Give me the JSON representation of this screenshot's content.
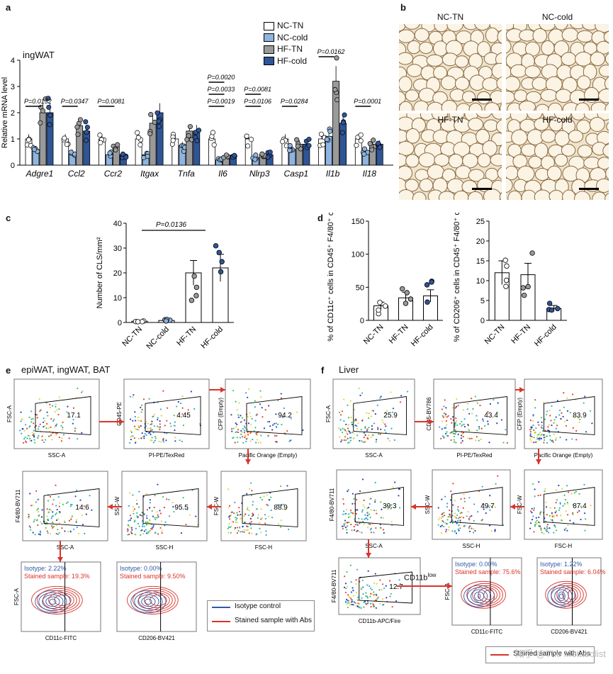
{
  "panels": {
    "a": {
      "letter": "a",
      "tissue": "ingWAT",
      "ylabel": "Relative mRNA level",
      "legend": [
        "NC-TN",
        "NC-cold",
        "HF-TN",
        "HF-cold"
      ],
      "colors": {
        "NC-TN": "#ffffff",
        "NC-cold": "#8fb4e0",
        "HF-TN": "#9a9a9a",
        "HF-cold": "#2f5597"
      }
    },
    "b": {
      "letter": "b",
      "images": [
        "NC-TN",
        "NC-cold",
        "HF-TN",
        "HF-cold"
      ]
    },
    "c": {
      "letter": "c",
      "ylabel": "Number of CLS/mm²",
      "pvalue": "P=0.0136"
    },
    "d": {
      "letter": "d",
      "left_ylabel1": "% of CD11c⁺ cells",
      "left_ylabel2": "in CD45⁺ F4/80⁺ cells",
      "right_ylabel1": "% of CD206⁺ cells",
      "right_ylabel2": "in CD45⁺ F4/80⁺ cells"
    },
    "e": {
      "letter": "e",
      "title": "epiWAT, ingWAT, BAT",
      "plots": [
        {
          "y": "FSC-A",
          "x": "SSC-A",
          "gate": "17.1"
        },
        {
          "y": "CD45-PE",
          "x": "PI-PE/TexRed",
          "gate": "4.45"
        },
        {
          "y": "CFP (Empty)",
          "x": "Pacific Orange (Empty)",
          "gate": "94.2"
        },
        {
          "y": "F4/80-BV711",
          "x": "SSC-A",
          "gate": "14.6"
        },
        {
          "y": "SSC-W",
          "x": "SSC-H",
          "gate": "95.5"
        },
        {
          "y": "FSC-W",
          "x": "FSC-H",
          "gate": "88.9"
        },
        {
          "y": "FSC-A",
          "x": "CD11c-FITC",
          "iso": "Isotype: 2.22%",
          "stained": "Stained sample: 19.3%"
        },
        {
          "y": "",
          "x": "CD206-BV421",
          "iso": "Isotype: 0.00%",
          "stained": "Stained sample: 9.50%"
        }
      ],
      "legend": [
        "Isotype control",
        "Stained sample with Abs"
      ]
    },
    "f": {
      "letter": "f",
      "title": "Liver",
      "plots": [
        {
          "y": "FSC-A",
          "x": "SSC-A",
          "gate": "25.9"
        },
        {
          "y": "CD45-BV786",
          "x": "PI-PE/TexRed",
          "gate": "43.4"
        },
        {
          "y": "CFP (Empty)",
          "x": "Pacific Orange (Empty)",
          "gate": "83.9"
        },
        {
          "y": "F4/80-BV711",
          "x": "SSC-A",
          "gate": "39.3"
        },
        {
          "y": "SSC-W",
          "x": "SSC-H",
          "gate": "49.7"
        },
        {
          "y": "FSC-W",
          "x": "FSC-H",
          "gate": "87.4"
        },
        {
          "y": "F4/80-BV711",
          "x": "CD11b-APC/Fire",
          "gate": "12.7"
        },
        {
          "y": "FSC-A",
          "x": "CD11c-FITC",
          "iso": "Isotype: 0.00%",
          "stained": "Stained sample: 75.6%"
        },
        {
          "y": "",
          "x": "CD206-BV421",
          "iso": "Isotype: 1.22%",
          "stained": "Stained sample: 6.04%"
        }
      ],
      "cd11b_label": "CD11b",
      "cd11b_sup": "low",
      "legend": [
        "Stained sample with Abs"
      ]
    }
  },
  "watermark": "知乎 @The Metabolist",
  "chart_data": [
    {
      "type": "bar",
      "title": "ingWAT",
      "ylabel": "Relative mRNA level",
      "ylim": [
        0,
        4
      ],
      "yticks": [
        0,
        1,
        2,
        3,
        4
      ],
      "categories": [
        "Adgre1",
        "Ccl2",
        "Ccr2",
        "Itgax",
        "Tnfa",
        "Il6",
        "Nlrp3",
        "Casp1",
        "Il1b",
        "Il18"
      ],
      "series": [
        {
          "name": "NC-TN",
          "values": [
            1.0,
            1.0,
            1.0,
            1.0,
            1.0,
            1.0,
            1.0,
            1.0,
            1.0,
            1.0
          ]
        },
        {
          "name": "NC-cold",
          "values": [
            0.6,
            0.5,
            0.4,
            0.4,
            0.75,
            0.2,
            0.3,
            0.6,
            1.1,
            0.5
          ]
        },
        {
          "name": "HF-TN",
          "values": [
            2.0,
            1.5,
            0.7,
            1.6,
            1.3,
            0.3,
            0.4,
            0.8,
            3.2,
            0.8
          ]
        },
        {
          "name": "HF-cold",
          "values": [
            2.0,
            1.3,
            0.4,
            2.0,
            1.3,
            0.3,
            0.4,
            0.8,
            1.6,
            0.8
          ]
        }
      ],
      "annotations": [
        {
          "gene": "Adgre1",
          "text": "P=0.0132"
        },
        {
          "gene": "Ccl2",
          "text": "P=0.0347"
        },
        {
          "gene": "Ccr2",
          "text": "P=0.0081"
        },
        {
          "gene": "Il6",
          "text": "P=0.0019"
        },
        {
          "gene": "Il6",
          "text": "P=0.0033"
        },
        {
          "gene": "Il6",
          "text": "P=0.0020"
        },
        {
          "gene": "Nlrp3",
          "text": "P=0.0106"
        },
        {
          "gene": "Nlrp3",
          "text": "P=0.0081"
        },
        {
          "gene": "Casp1",
          "text": "P=0.0284"
        },
        {
          "gene": "Il1b",
          "text": "P=0.0162"
        },
        {
          "gene": "Il18",
          "text": "P=0.0001"
        }
      ]
    },
    {
      "type": "bar",
      "ylabel": "Number of CLS/mm²",
      "ylim": [
        0,
        40
      ],
      "yticks": [
        0,
        10,
        20,
        30,
        40
      ],
      "categories": [
        "NC-TN",
        "NC-cold",
        "HF-TN",
        "HF-cold"
      ],
      "values": [
        0.5,
        0.8,
        20,
        22
      ],
      "annotation": "P=0.0136"
    },
    {
      "type": "bar",
      "ylabel": "% of CD11c⁺ cells in CD45⁺ F4/80⁺ cells",
      "ylim": [
        0,
        150
      ],
      "yticks": [
        0,
        50,
        100,
        150
      ],
      "categories": [
        "NC-TN",
        "HF-TN",
        "HF-cold"
      ],
      "values": [
        22,
        34,
        37
      ]
    },
    {
      "type": "bar",
      "ylabel": "% of CD206⁺ cells in CD45⁺ F4/80⁺ cells",
      "ylim": [
        0,
        25
      ],
      "yticks": [
        0,
        5,
        10,
        15,
        20,
        25
      ],
      "categories": [
        "NC-TN",
        "HF-TN",
        "HF-cold"
      ],
      "values": [
        12,
        11.5,
        3
      ]
    }
  ]
}
